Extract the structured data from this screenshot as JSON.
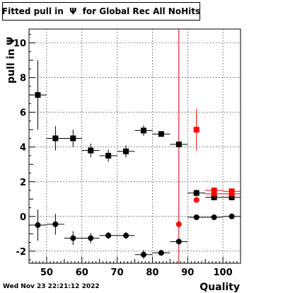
{
  "chart_data": {
    "type": "scatter",
    "title": "Fitted pull in  Ψ  for Global Rec All NoHits",
    "xlabel": "Quality",
    "ylabel": "pull in Ψ",
    "xlim": [
      45,
      105
    ],
    "ylim": [
      -2.7,
      10.8
    ],
    "x_ticks": [
      50,
      60,
      70,
      80,
      90,
      100
    ],
    "y_ticks": [
      -2,
      0,
      2,
      4,
      6,
      8,
      10
    ],
    "grid": true,
    "vertical_line": {
      "x": 87.5,
      "color": "#cc0000"
    },
    "series": [
      {
        "marker": "square",
        "color": "#000000",
        "points": [
          {
            "x": 47.5,
            "y": 7.0,
            "yerr": 2.0,
            "xerr": 2.5
          },
          {
            "x": 52.5,
            "y": 4.5,
            "yerr": 0.7,
            "xerr": 2.5
          },
          {
            "x": 57.5,
            "y": 4.5,
            "yerr": 0.5,
            "xerr": 2.5
          },
          {
            "x": 62.5,
            "y": 3.8,
            "yerr": 0.4,
            "xerr": 2.5
          },
          {
            "x": 67.5,
            "y": 3.5,
            "yerr": 0.35,
            "xerr": 2.5
          },
          {
            "x": 72.5,
            "y": 3.75,
            "yerr": 0.35,
            "xerr": 2.5
          },
          {
            "x": 77.5,
            "y": 4.95,
            "yerr": 0.3,
            "xerr": 2.5
          },
          {
            "x": 82.5,
            "y": 4.75,
            "yerr": 0.15,
            "xerr": 2.5
          },
          {
            "x": 87.5,
            "y": 4.15,
            "yerr": 0.15,
            "xerr": 2.5
          },
          {
            "x": 92.5,
            "y": 1.35,
            "yerr": 0.2,
            "xerr": 2.5
          },
          {
            "x": 97.5,
            "y": 1.1,
            "yerr": 0.05,
            "xerr": 2.5
          },
          {
            "x": 102.5,
            "y": 1.1,
            "yerr": 0.05,
            "xerr": 2.5
          }
        ]
      },
      {
        "marker": "circle",
        "color": "#000000",
        "points": [
          {
            "x": 47.5,
            "y": -0.5,
            "yerr": 0.9,
            "xerr": 2.5
          },
          {
            "x": 52.5,
            "y": -0.45,
            "yerr": 0.6,
            "xerr": 2.5
          },
          {
            "x": 57.5,
            "y": -1.25,
            "yerr": 0.4,
            "xerr": 2.5
          },
          {
            "x": 62.5,
            "y": -1.25,
            "yerr": 0.3,
            "xerr": 2.5
          },
          {
            "x": 67.5,
            "y": -1.1,
            "yerr": 0.2,
            "xerr": 2.5
          },
          {
            "x": 72.5,
            "y": -1.1,
            "yerr": 0.2,
            "xerr": 2.5
          },
          {
            "x": 77.5,
            "y": -2.2,
            "yerr": 0.25,
            "xerr": 2.5
          },
          {
            "x": 82.5,
            "y": -2.1,
            "yerr": 0.15,
            "xerr": 2.5
          },
          {
            "x": 87.5,
            "y": -1.45,
            "yerr": 0.1,
            "xerr": 2.5
          },
          {
            "x": 92.5,
            "y": -0.05,
            "yerr": 0.1,
            "xerr": 2.5
          },
          {
            "x": 97.5,
            "y": -0.05,
            "yerr": 0.05,
            "xerr": 2.5
          },
          {
            "x": 102.5,
            "y": 0.0,
            "yerr": 0.05,
            "xerr": 2.5
          }
        ]
      },
      {
        "marker": "square",
        "color": "#ff0000",
        "points": [
          {
            "x": 92.5,
            "y": 5.0,
            "yerr": 1.2,
            "xerr": 0
          },
          {
            "x": 97.5,
            "y": 1.5,
            "yerr": 0.1,
            "xerr": 2.5
          },
          {
            "x": 102.5,
            "y": 1.45,
            "yerr": 0.1,
            "xerr": 2.5
          }
        ]
      },
      {
        "marker": "circle",
        "color": "#ff0000",
        "points": [
          {
            "x": 87.5,
            "y": -0.45,
            "yerr": 0.2,
            "xerr": 0
          },
          {
            "x": 92.5,
            "y": 0.95,
            "yerr": 0.1,
            "xerr": 0
          },
          {
            "x": 97.5,
            "y": 1.3,
            "yerr": 0.05,
            "xerr": 2.5
          },
          {
            "x": 102.5,
            "y": 1.3,
            "yerr": 0.05,
            "xerr": 2.5
          }
        ]
      }
    ]
  },
  "timestamp": "Wed Nov 23 22:21:12 2022"
}
